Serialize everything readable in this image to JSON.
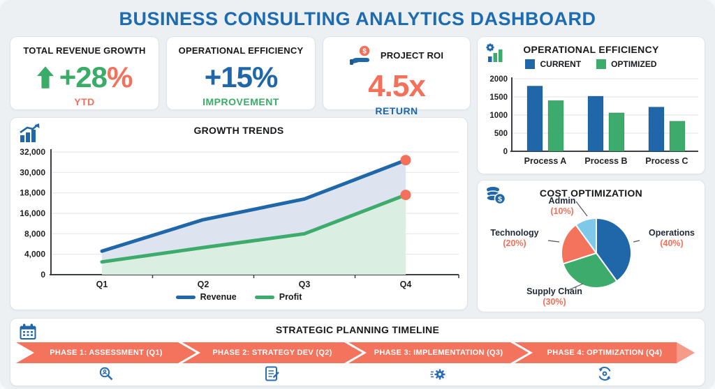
{
  "page_title": "BUSINESS CONSULTING ANALYTICS DASHBOARD",
  "colors": {
    "accent_blue": "#1d6bb0",
    "series_blue": "#1f67a8",
    "series_green": "#3cab6b",
    "salmon": "#f4705b",
    "admin_light_blue": "#7ec9ea",
    "background": "#ecf0f3"
  },
  "kpis": [
    {
      "title": "TOTAL REVENUE GROWTH",
      "value": "+28",
      "suffix": "%",
      "subtitle": "YTD"
    },
    {
      "title": "OPERATIONAL EFFICIENCY",
      "value": "+15%",
      "suffix": "",
      "subtitle": "IMPROVEMENT"
    },
    {
      "title": "PROJECT ROI",
      "value": "4.5x",
      "suffix": "",
      "subtitle": "RETURN"
    }
  ],
  "chart_data": [
    {
      "id": "growth-trends",
      "type": "line",
      "title": "GROWTH TRENDS",
      "x_categories": [
        "Q1",
        "Q2",
        "Q3",
        "Q4"
      ],
      "y_tick_labels": [
        "0",
        "4,000",
        "8,000",
        "16,000",
        "18,000",
        "30,000",
        "32,000"
      ],
      "y_tick_values": [
        0,
        4000,
        8000,
        16000,
        18000,
        30000,
        32000
      ],
      "series": [
        {
          "name": "Revenue",
          "color": "#1f67a8",
          "fill": "#dde4f0",
          "values": [
            4600,
            13500,
            17400,
            31200
          ]
        },
        {
          "name": "Profit",
          "color": "#3cab6b",
          "fill": "#daeee1",
          "values": [
            2500,
            5300,
            8000,
            17800
          ]
        }
      ],
      "end_marker_color": "#f4705b",
      "legend_position": "bottom"
    },
    {
      "id": "operational-efficiency",
      "type": "bar",
      "title": "OPERATIONAL EFFICIENCY",
      "categories": [
        "Process A",
        "Process B",
        "Process C"
      ],
      "yticks": [
        0,
        500,
        1000,
        1500,
        2000
      ],
      "ylim": [
        0,
        2000
      ],
      "series": [
        {
          "name": "CURRENT",
          "color": "#1f67a8",
          "values": [
            1800,
            1520,
            1220
          ]
        },
        {
          "name": "OPTIMIZED",
          "color": "#3cab6b",
          "values": [
            1400,
            1060,
            830
          ]
        }
      ],
      "legend_position": "top"
    },
    {
      "id": "cost-optimization",
      "type": "pie",
      "title": "COST OPTIMIZATION",
      "slices": [
        {
          "label": "Operations",
          "pct": 40,
          "pct_label": "(40%)",
          "color": "#1f67a8"
        },
        {
          "label": "Supply Chain",
          "pct": 30,
          "pct_label": "(30%)",
          "color": "#3cab6b"
        },
        {
          "label": "Technology",
          "pct": 20,
          "pct_label": "(20%)",
          "color": "#f4735c"
        },
        {
          "label": "Admin",
          "pct": 10,
          "pct_label": "(10%)",
          "color": "#7ec9ea"
        }
      ]
    }
  ],
  "timeline": {
    "title": "STRATEGIC PLANNING TIMELINE",
    "phases": [
      {
        "label": "PHASE 1: ASSESSMENT (Q1)",
        "icon": "magnifier-icon"
      },
      {
        "label": "PHASE 2: STRATEGY DEV (Q2)",
        "icon": "checklist-icon"
      },
      {
        "label": "PHASE 3: IMPLEMENTATION (Q3)",
        "icon": "gear-icon"
      },
      {
        "label": "PHASE 4: OPTIMIZATION (Q4)",
        "icon": "refresh-gear-icon"
      }
    ]
  }
}
